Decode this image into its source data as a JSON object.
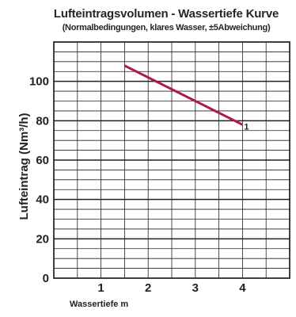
{
  "chart_data": {
    "type": "line",
    "title": "Lufteintragsvolumen - Wassertiefe Kurve",
    "subtitle": "(Normalbedingungen, klares Wasser, ±5Abweichung)",
    "xlabel": "Wassertiefe m",
    "ylabel": "Lufteintrag (Nm³/h)",
    "xlim": [
      0,
      5
    ],
    "ylim": [
      0,
      120
    ],
    "x_ticks": [
      1,
      2,
      3,
      4
    ],
    "x_tick_labels": [
      "1",
      "2",
      "3",
      "4"
    ],
    "y_ticks": [
      0,
      20,
      40,
      60,
      80,
      100
    ],
    "y_tick_labels": [
      "0",
      "20",
      "40",
      "60",
      "80",
      "100"
    ],
    "grid": true,
    "series": [
      {
        "name": "1",
        "color": "#b0174a",
        "x": [
          1.5,
          4.0
        ],
        "y": [
          108,
          78
        ]
      }
    ]
  }
}
